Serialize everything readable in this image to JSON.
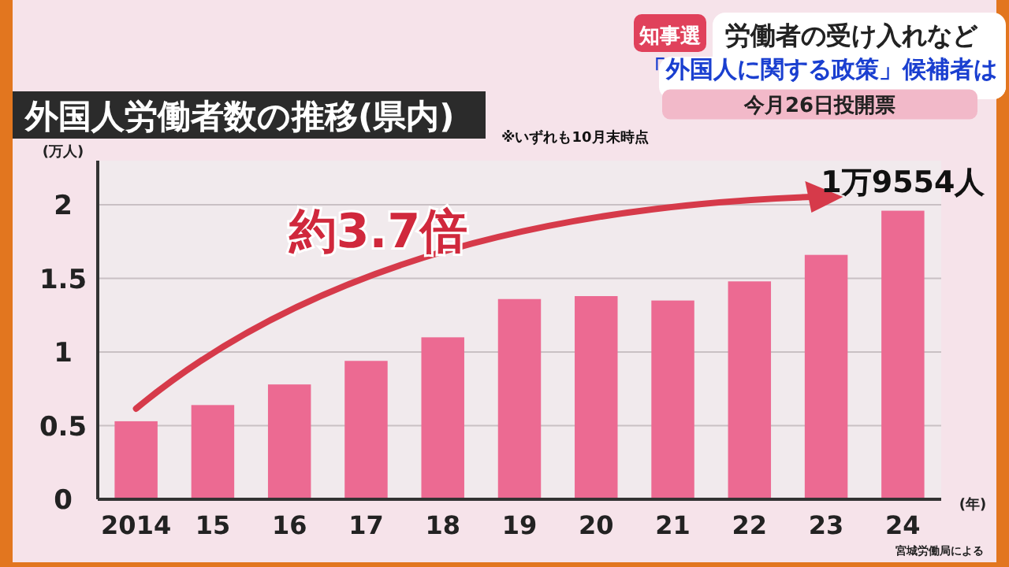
{
  "chart_data": {
    "type": "bar",
    "title": "外国人労働者数の推移(県内)",
    "subtitle": "※いずれも10月末時点",
    "ylabel": "(万人)",
    "xlabel": "(年)",
    "categories": [
      "2014",
      "15",
      "16",
      "17",
      "18",
      "19",
      "20",
      "21",
      "22",
      "23",
      "24"
    ],
    "values": [
      0.53,
      0.64,
      0.78,
      0.94,
      1.1,
      1.36,
      1.38,
      1.35,
      1.48,
      1.66,
      1.96
    ],
    "color": "#ec6a92",
    "ylim": [
      0,
      2.3
    ],
    "yticks": [
      0,
      0.5,
      1,
      1.5,
      2
    ],
    "grid": "y",
    "annotations": [
      "知事選",
      "労働者の受け入れなど",
      "「外国人に関する政策」候補者は",
      "今月26日投開票",
      "約3.7倍",
      "宮城労働局による",
      {
        "text": "1万9554人",
        "x": "24",
        "y": 1.96
      }
    ]
  }
}
